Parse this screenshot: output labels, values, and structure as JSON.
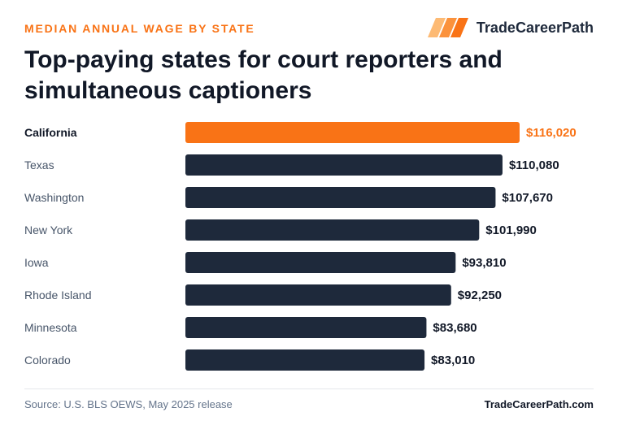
{
  "header": {
    "eyebrow": "MEDIAN ANNUAL WAGE BY STATE",
    "brand_name": "TradeCareerPath"
  },
  "title": "Top-paying states for court reporters and simultaneous captioners",
  "footer": {
    "source": "Source: U.S. BLS OEWS, May 2025 release",
    "site": "TradeCareerPath.com"
  },
  "colors": {
    "accent": "#f97316",
    "bar": "#1e293b",
    "label_highlight": "#111827",
    "label_default": "#475569",
    "value_default": "#111827"
  },
  "chart_data": {
    "type": "bar",
    "orientation": "horizontal",
    "categories": [
      "California",
      "Texas",
      "Washington",
      "New York",
      "Iowa",
      "Rhode Island",
      "Minnesota",
      "Colorado"
    ],
    "values": [
      116020,
      110080,
      107670,
      101990,
      93810,
      92250,
      83680,
      83010
    ],
    "value_labels": [
      "$116,020",
      "$110,080",
      "$107,670",
      "$101,990",
      "$93,810",
      "$92,250",
      "$83,680",
      "$83,010"
    ],
    "highlight_index": 0,
    "xlim": [
      0,
      116020
    ],
    "grid": false,
    "legend": "none"
  }
}
